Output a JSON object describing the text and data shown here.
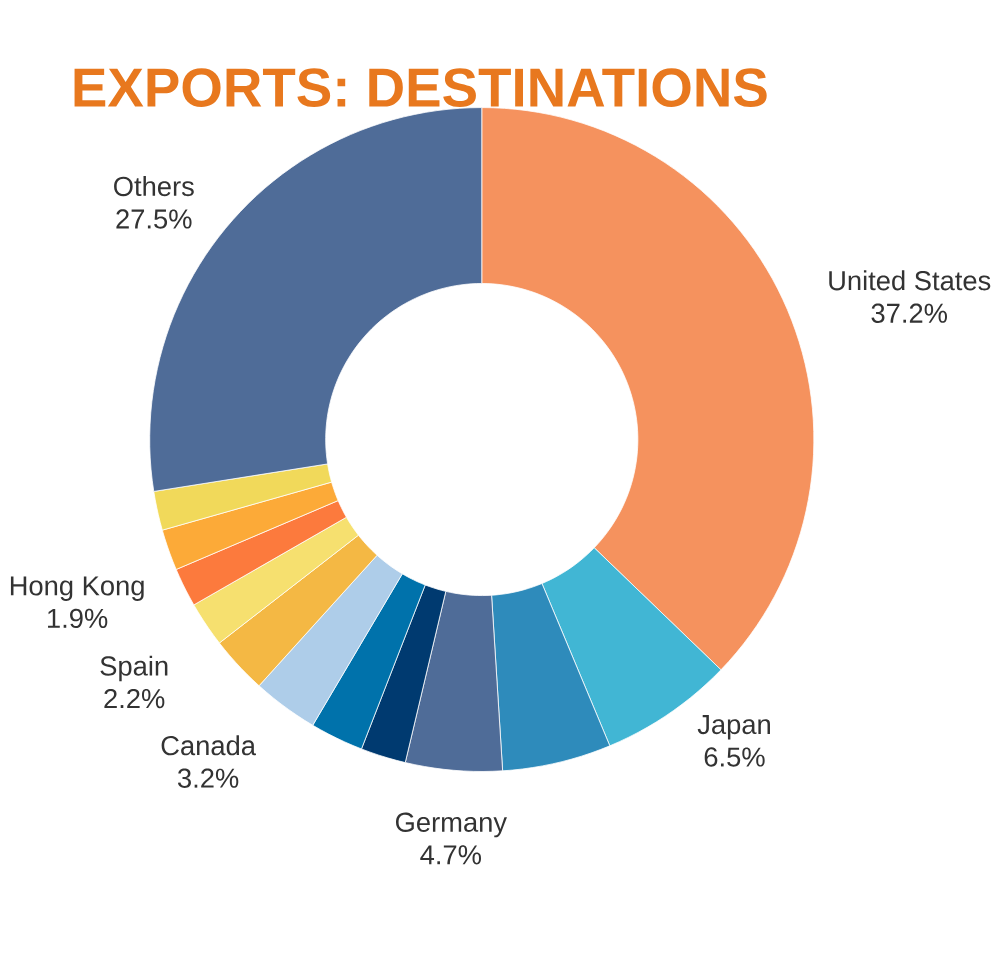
{
  "chart_data": {
    "type": "donut",
    "title": "EXPORTS: DESTINATIONS",
    "categories": [
      "United States",
      "Japan",
      null,
      "Germany",
      null,
      null,
      "Canada",
      null,
      "Spain",
      "Hong Kong",
      null,
      null,
      "Others"
    ],
    "values": [
      37.2,
      6.5,
      5.3,
      4.7,
      2.2,
      2.6,
      3.2,
      2.8,
      2.2,
      1.9,
      2.0,
      1.9,
      27.5
    ],
    "value_labels": [
      "37.2%",
      "6.5%",
      null,
      "4.7%",
      null,
      null,
      "3.2%",
      null,
      "2.2%",
      "1.9%",
      null,
      null,
      "27.5%"
    ],
    "colors": [
      "#f5925e",
      "#41b6d4",
      "#2e8bbb",
      "#4f6c98",
      "#003a70",
      "#0072ab",
      "#aecde9",
      "#f4b844",
      "#f6e06f",
      "#fc7a3d",
      "#fcaa38",
      "#f1d95a",
      "#4f6c98"
    ]
  }
}
